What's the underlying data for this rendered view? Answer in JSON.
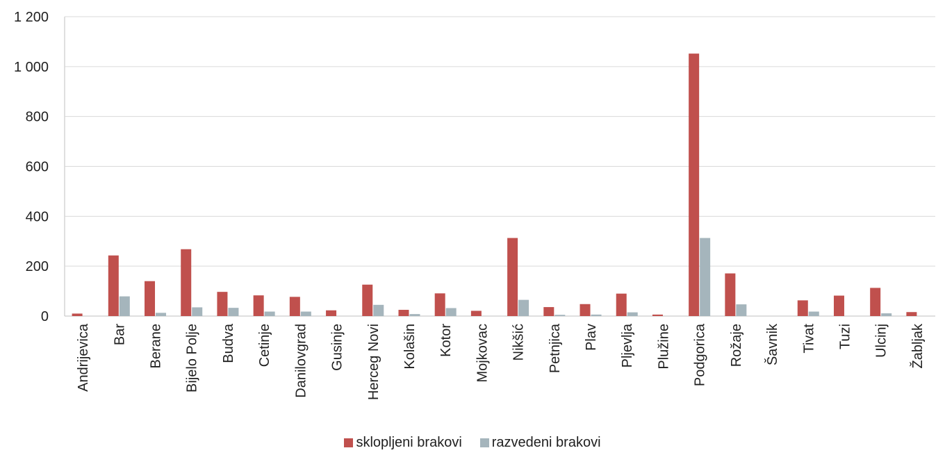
{
  "colors": {
    "series1": "#c0504d",
    "series2": "#a5b5bc",
    "grid": "#d9d9d9",
    "axis": "#bfbfbf"
  },
  "chart_data": {
    "type": "bar",
    "categories": [
      "Andrijevica",
      "Bar",
      "Berane",
      "Bijelo Polje",
      "Budva",
      "Cetinje",
      "Danilovgrad",
      "Gusinje",
      "Herceg Novi",
      "Kolašin",
      "Kotor",
      "Mojkovac",
      "Nikšić",
      "Petnjica",
      "Plav",
      "Pljevlja",
      "Plužine",
      "Podgorica",
      "Rožaje",
      "Šavnik",
      "Tivat",
      "Tuzi",
      "Ulcinj",
      "Žabljak"
    ],
    "series": [
      {
        "name": "sklopljeni brakovi",
        "values": [
          10,
          243,
          140,
          268,
          97,
          83,
          77,
          23,
          126,
          25,
          91,
          21,
          313,
          36,
          48,
          90,
          6,
          1052,
          171,
          0,
          63,
          82,
          113,
          16
        ]
      },
      {
        "name": "razvedeni brakovi",
        "values": [
          0,
          79,
          13,
          35,
          33,
          18,
          18,
          0,
          45,
          8,
          32,
          0,
          65,
          5,
          6,
          15,
          0,
          313,
          47,
          0,
          18,
          0,
          11,
          0
        ]
      }
    ],
    "y_ticks": [
      "0",
      "200",
      "400",
      "600",
      "800",
      "1 000",
      "1 200"
    ],
    "ylim": [
      0,
      1200
    ],
    "grid": true,
    "legend_position": "bottom"
  }
}
